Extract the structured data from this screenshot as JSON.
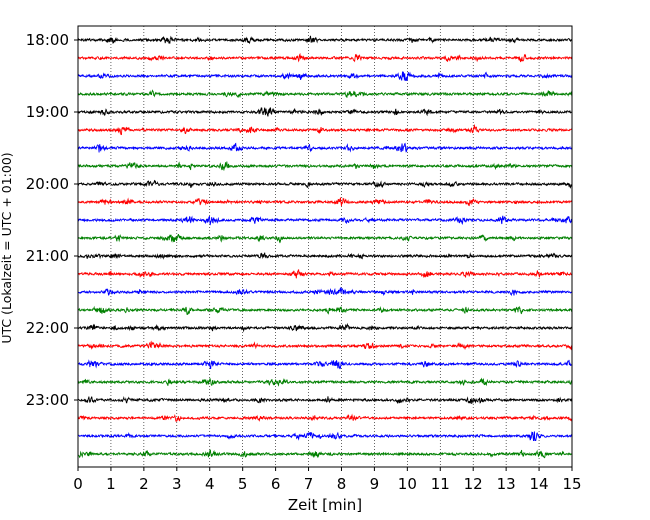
{
  "chart_data": {
    "type": "line",
    "title": "",
    "xlabel": "Zeit  [min]",
    "ylabel": "UTC (Lokalzeit = UTC + 01:00)",
    "xlim": [
      0,
      15
    ],
    "x_ticks": [
      0,
      1,
      2,
      3,
      4,
      5,
      6,
      7,
      8,
      9,
      10,
      11,
      12,
      13,
      14,
      15
    ],
    "y_ticks": [
      "18:00",
      "19:00",
      "20:00",
      "21:00",
      "22:00",
      "23:00"
    ],
    "vertical_grid": "dotted",
    "trace_colors": [
      "#000000",
      "#ff0000",
      "#0000ff",
      "#008000"
    ],
    "traces": [
      {
        "start": "18:00",
        "color": "#000000"
      },
      {
        "start": "18:15",
        "color": "#ff0000"
      },
      {
        "start": "18:30",
        "color": "#0000ff"
      },
      {
        "start": "18:45",
        "color": "#008000"
      },
      {
        "start": "19:00",
        "color": "#000000"
      },
      {
        "start": "19:15",
        "color": "#ff0000"
      },
      {
        "start": "19:30",
        "color": "#0000ff"
      },
      {
        "start": "19:45",
        "color": "#008000"
      },
      {
        "start": "20:00",
        "color": "#000000"
      },
      {
        "start": "20:15",
        "color": "#ff0000"
      },
      {
        "start": "20:30",
        "color": "#0000ff"
      },
      {
        "start": "20:45",
        "color": "#008000"
      },
      {
        "start": "21:00",
        "color": "#000000"
      },
      {
        "start": "21:15",
        "color": "#ff0000"
      },
      {
        "start": "21:30",
        "color": "#0000ff"
      },
      {
        "start": "21:45",
        "color": "#008000"
      },
      {
        "start": "22:00",
        "color": "#000000"
      },
      {
        "start": "22:15",
        "color": "#ff0000"
      },
      {
        "start": "22:30",
        "color": "#0000ff"
      },
      {
        "start": "22:45",
        "color": "#008000"
      },
      {
        "start": "23:00",
        "color": "#000000"
      },
      {
        "start": "23:15",
        "color": "#ff0000"
      },
      {
        "start": "23:30",
        "color": "#0000ff"
      },
      {
        "start": "23:45",
        "color": "#008000"
      }
    ]
  }
}
